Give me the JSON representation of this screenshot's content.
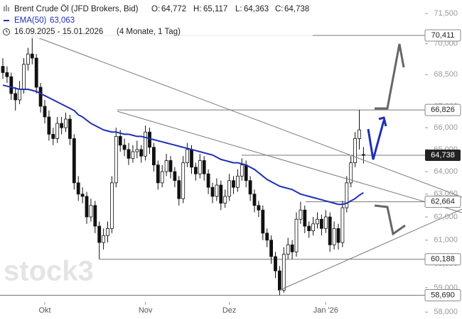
{
  "chart_data": {
    "type": "candlestick",
    "title": "Brent Crude Öl (JFD Brokers, Bid)",
    "header": {
      "o_label": "O:",
      "o": "64,772",
      "h_label": "H:",
      "h": "65,117",
      "l_label": "L:",
      "l": "64,363",
      "c_label": "C:",
      "c": "64,738"
    },
    "range_text": "16.09.2025 - 15.01.2026",
    "range_note": "(4 Monate, 1 Tag)",
    "watermark": "stock3",
    "log_scale": true,
    "ylim": [
      57.72,
      72.18
    ],
    "yticks": [
      {
        "value": 71.5,
        "label": "71,500"
      },
      {
        "value": 70,
        "label": "70,000"
      },
      {
        "value": 68.5,
        "label": "68,500"
      },
      {
        "value": 67,
        "label": "67,000"
      },
      {
        "value": 66,
        "label": "66,000"
      },
      {
        "value": 65,
        "label": "65,000"
      },
      {
        "value": 64,
        "label": "64,000"
      },
      {
        "value": 63,
        "label": "63,000"
      },
      {
        "value": 62,
        "label": "62,000"
      },
      {
        "value": 61,
        "label": "61,000"
      },
      {
        "value": 60,
        "label": "60,000"
      },
      {
        "value": 59,
        "label": "59,000"
      },
      {
        "value": 58,
        "label": "58,000"
      }
    ],
    "xticks": [
      {
        "value": 10,
        "label": "Okt"
      },
      {
        "value": 34,
        "label": "Nov"
      },
      {
        "value": 54,
        "label": "Dez"
      },
      {
        "value": 77,
        "label": "Jan '26"
      }
    ],
    "up_color": "#ffffff",
    "down_color": "#111111",
    "ohlc": [
      [
        68.9,
        69.3,
        68.3,
        68.6
      ],
      [
        68.6,
        68.9,
        68.1,
        68.4
      ],
      [
        68.4,
        68.6,
        67.3,
        67.6
      ],
      [
        67.6,
        67.9,
        66.8,
        67.3
      ],
      [
        67.3,
        68.2,
        67.1,
        67.8
      ],
      [
        67.8,
        69.3,
        67.6,
        69.0
      ],
      [
        69.0,
        69.8,
        68.7,
        69.5
      ],
      [
        69.5,
        70.411,
        69.0,
        69.3
      ],
      [
        69.3,
        69.5,
        67.6,
        67.9
      ],
      [
        67.9,
        68.1,
        66.7,
        67.0
      ],
      [
        67.0,
        67.3,
        66.2,
        66.5
      ],
      [
        66.5,
        66.8,
        65.4,
        65.7
      ],
      [
        65.7,
        66.0,
        65.2,
        65.5
      ],
      [
        65.5,
        66.5,
        65.3,
        66.2
      ],
      [
        66.2,
        66.5,
        65.7,
        66.0
      ],
      [
        66.0,
        66.7,
        65.8,
        66.4
      ],
      [
        66.4,
        66.6,
        65.2,
        65.5
      ],
      [
        65.5,
        65.7,
        63.2,
        63.5
      ],
      [
        63.5,
        63.8,
        62.7,
        63.0
      ],
      [
        63.0,
        63.3,
        62.6,
        62.9
      ],
      [
        62.9,
        63.1,
        61.7,
        62.0
      ],
      [
        62.0,
        62.8,
        61.8,
        62.5
      ],
      [
        62.5,
        62.7,
        61.3,
        61.6
      ],
      [
        61.6,
        61.8,
        60.188,
        60.9
      ],
      [
        60.9,
        61.5,
        60.6,
        61.2
      ],
      [
        61.2,
        61.8,
        60.9,
        61.5
      ],
      [
        61.5,
        63.8,
        61.3,
        63.5
      ],
      [
        63.5,
        66.0,
        63.3,
        65.6
      ],
      [
        65.6,
        65.9,
        64.9,
        65.2
      ],
      [
        65.2,
        65.5,
        64.7,
        65.0
      ],
      [
        65.0,
        65.3,
        64.3,
        64.6
      ],
      [
        64.6,
        65.2,
        64.4,
        64.9
      ],
      [
        64.9,
        65.4,
        64.6,
        65.0
      ],
      [
        65.0,
        65.2,
        64.4,
        64.7
      ],
      [
        64.7,
        66.1,
        64.5,
        65.8
      ],
      [
        65.8,
        66.0,
        64.8,
        65.1
      ],
      [
        65.1,
        65.3,
        64.0,
        64.3
      ],
      [
        64.3,
        64.5,
        63.2,
        63.5
      ],
      [
        63.5,
        64.3,
        63.3,
        64.0
      ],
      [
        64.0,
        64.8,
        63.8,
        64.5
      ],
      [
        64.5,
        64.7,
        63.7,
        64.0
      ],
      [
        64.0,
        64.2,
        63.3,
        63.6
      ],
      [
        63.6,
        63.8,
        62.5,
        62.8
      ],
      [
        62.8,
        64.7,
        62.6,
        64.4
      ],
      [
        64.4,
        65.3,
        64.2,
        65.0
      ],
      [
        65.0,
        65.2,
        63.9,
        64.2
      ],
      [
        64.2,
        64.4,
        63.6,
        63.9
      ],
      [
        63.9,
        64.8,
        63.7,
        64.5
      ],
      [
        64.5,
        64.7,
        63.6,
        63.9
      ],
      [
        63.9,
        64.1,
        63.0,
        63.3
      ],
      [
        63.3,
        63.5,
        62.6,
        62.9
      ],
      [
        62.9,
        63.7,
        62.7,
        63.4
      ],
      [
        63.4,
        63.6,
        62.3,
        62.6
      ],
      [
        62.6,
        63.2,
        62.4,
        62.9
      ],
      [
        62.9,
        63.9,
        62.7,
        63.6
      ],
      [
        63.6,
        63.8,
        63.0,
        63.3
      ],
      [
        63.3,
        64.1,
        63.1,
        63.8
      ],
      [
        63.8,
        64.6,
        63.6,
        64.3
      ],
      [
        64.3,
        64.5,
        63.3,
        63.6
      ],
      [
        63.6,
        63.8,
        62.7,
        63.0
      ],
      [
        63.0,
        63.2,
        62.2,
        62.5
      ],
      [
        62.5,
        62.7,
        62.0,
        62.3
      ],
      [
        62.3,
        62.5,
        61.0,
        61.3
      ],
      [
        61.3,
        61.5,
        60.7,
        61.0
      ],
      [
        61.0,
        61.2,
        60.0,
        60.3
      ],
      [
        60.3,
        60.5,
        59.4,
        59.7
      ],
      [
        59.7,
        59.9,
        58.69,
        58.9
      ],
      [
        58.9,
        60.7,
        58.8,
        60.4
      ],
      [
        60.4,
        61.1,
        60.2,
        60.8
      ],
      [
        60.8,
        61.0,
        60.2,
        60.5
      ],
      [
        60.5,
        62.2,
        60.3,
        61.9
      ],
      [
        61.9,
        62.664,
        61.7,
        62.3
      ],
      [
        62.3,
        62.5,
        61.3,
        61.6
      ],
      [
        61.6,
        61.8,
        61.1,
        61.4
      ],
      [
        61.4,
        62.0,
        61.2,
        61.7
      ],
      [
        61.7,
        62.2,
        61.5,
        61.9
      ],
      [
        61.9,
        62.1,
        61.2,
        61.5
      ],
      [
        61.5,
        62.3,
        61.3,
        62.0
      ],
      [
        62.0,
        62.2,
        60.5,
        60.8
      ],
      [
        60.8,
        61.8,
        60.6,
        61.5
      ],
      [
        61.5,
        61.7,
        60.6,
        60.9
      ],
      [
        60.9,
        62.7,
        60.7,
        62.4
      ],
      [
        62.4,
        63.8,
        62.2,
        63.5
      ],
      [
        63.5,
        64.7,
        63.3,
        64.4
      ],
      [
        64.4,
        65.8,
        64.2,
        65.5
      ],
      [
        65.5,
        66.826,
        65.0,
        65.9
      ],
      [
        64.772,
        65.117,
        64.363,
        64.738
      ]
    ],
    "ema": {
      "name": "EMA(50)",
      "last_label": "63,063",
      "color": "#1f2fb5",
      "values": [
        68.0,
        67.95,
        67.9,
        67.85,
        67.8,
        67.8,
        67.8,
        67.75,
        67.7,
        67.6,
        67.5,
        67.4,
        67.3,
        67.2,
        67.1,
        67.0,
        66.9,
        66.8,
        66.6,
        66.5,
        66.35,
        66.2,
        66.1,
        66.0,
        65.9,
        65.85,
        65.8,
        65.8,
        65.75,
        65.7,
        65.7,
        65.65,
        65.6,
        65.6,
        65.55,
        65.5,
        65.45,
        65.4,
        65.35,
        65.3,
        65.25,
        65.2,
        65.15,
        65.1,
        65.05,
        65.0,
        64.95,
        64.9,
        64.85,
        64.8,
        64.75,
        64.65,
        64.55,
        64.5,
        64.45,
        64.4,
        64.4,
        64.35,
        64.3,
        64.2,
        64.1,
        63.95,
        63.8,
        63.65,
        63.55,
        63.45,
        63.35,
        63.3,
        63.25,
        63.2,
        63.1,
        63.0,
        62.95,
        62.9,
        62.85,
        62.8,
        62.75,
        62.7,
        62.65,
        62.6,
        62.55,
        62.55,
        62.6,
        62.7,
        62.8,
        62.95,
        63.063
      ]
    },
    "levels": [
      {
        "value": 70.411,
        "label": "70,411"
      },
      {
        "value": 66.826,
        "label": "66,826"
      },
      {
        "value": 62.664,
        "label": "62,664"
      },
      {
        "value": 60.188,
        "label": "60,188"
      },
      {
        "value": 58.69,
        "label": "58,690"
      }
    ],
    "current": {
      "value": 64.738,
      "label": "64,738"
    }
  }
}
